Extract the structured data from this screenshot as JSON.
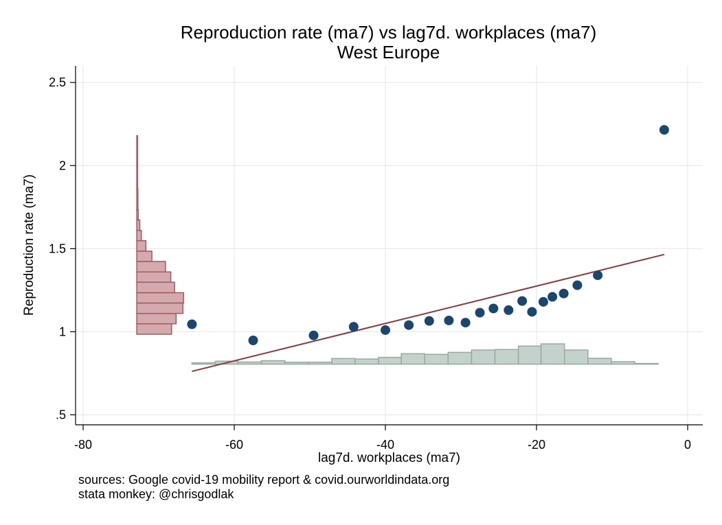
{
  "chart_data": {
    "type": "scatter",
    "title": "Reproduction rate (ma7) vs lag7d. workplaces (ma7)",
    "subtitle": "West Europe",
    "xlabel": "lag7d. workplaces (ma7)",
    "ylabel": "Reproduction rate (ma7)",
    "xlim": [
      -81,
      2
    ],
    "ylim": [
      0.44,
      2.6
    ],
    "xticks": [
      -80,
      -60,
      -40,
      -20,
      0
    ],
    "xtick_labels": [
      "-80",
      "-60",
      "-40",
      "-20",
      "0"
    ],
    "yticks": [
      0.5,
      1,
      1.5,
      2,
      2.5
    ],
    "ytick_labels": [
      ".5",
      "1",
      "1.5",
      "2",
      "2.5"
    ],
    "grid": true,
    "colors": {
      "points": "#1a476f",
      "fit_line": "#90353b",
      "y_hist_fill": "#d4aaae",
      "y_hist_edge": "#a05a62",
      "x_hist_fill": "#c5d1cb",
      "x_hist_edge": "#94aca0",
      "grid": "#eaeaea"
    },
    "points": [
      {
        "x": -65.6,
        "y": 1.045
      },
      {
        "x": -57.5,
        "y": 0.948
      },
      {
        "x": -49.5,
        "y": 0.978
      },
      {
        "x": -44.2,
        "y": 1.03
      },
      {
        "x": -40.0,
        "y": 1.01
      },
      {
        "x": -36.9,
        "y": 1.04
      },
      {
        "x": -34.2,
        "y": 1.065
      },
      {
        "x": -31.6,
        "y": 1.068
      },
      {
        "x": -29.4,
        "y": 1.055
      },
      {
        "x": -27.5,
        "y": 1.115
      },
      {
        "x": -25.7,
        "y": 1.14
      },
      {
        "x": -23.7,
        "y": 1.13
      },
      {
        "x": -21.9,
        "y": 1.185
      },
      {
        "x": -20.6,
        "y": 1.12
      },
      {
        "x": -19.1,
        "y": 1.18
      },
      {
        "x": -17.9,
        "y": 1.21
      },
      {
        "x": -16.4,
        "y": 1.23
      },
      {
        "x": -14.6,
        "y": 1.28
      },
      {
        "x": -11.9,
        "y": 1.34
      },
      {
        "x": -3.1,
        "y": 2.215
      }
    ],
    "fit_line": {
      "x": [
        -65.6,
        -3.1
      ],
      "y": [
        0.762,
        1.465
      ]
    },
    "x_histogram": {
      "baseline_y": 0.805,
      "bins": [
        {
          "x0": -65.6,
          "x1": -62.5,
          "top": 0.813
        },
        {
          "x0": -62.5,
          "x1": -59.5,
          "top": 0.823
        },
        {
          "x0": -59.5,
          "x1": -56.4,
          "top": 0.818
        },
        {
          "x0": -56.4,
          "x1": -53.3,
          "top": 0.826
        },
        {
          "x0": -53.3,
          "x1": -50.2,
          "top": 0.817
        },
        {
          "x0": -50.2,
          "x1": -47.1,
          "top": 0.817
        },
        {
          "x0": -47.1,
          "x1": -44.0,
          "top": 0.839
        },
        {
          "x0": -44.0,
          "x1": -40.9,
          "top": 0.836
        },
        {
          "x0": -40.9,
          "x1": -37.9,
          "top": 0.846
        },
        {
          "x0": -37.9,
          "x1": -34.8,
          "top": 0.868
        },
        {
          "x0": -34.8,
          "x1": -31.7,
          "top": 0.864
        },
        {
          "x0": -31.7,
          "x1": -28.6,
          "top": 0.876
        },
        {
          "x0": -28.6,
          "x1": -25.5,
          "top": 0.89
        },
        {
          "x0": -25.5,
          "x1": -22.4,
          "top": 0.893
        },
        {
          "x0": -22.4,
          "x1": -19.4,
          "top": 0.914
        },
        {
          "x0": -19.4,
          "x1": -16.3,
          "top": 0.927
        },
        {
          "x0": -16.3,
          "x1": -13.2,
          "top": 0.89
        },
        {
          "x0": -13.2,
          "x1": -10.1,
          "top": 0.84
        },
        {
          "x0": -10.1,
          "x1": -7.0,
          "top": 0.82
        },
        {
          "x0": -7.0,
          "x1": -3.9,
          "top": 0.809
        }
      ]
    },
    "y_histogram": {
      "baseline_x": -72.9,
      "bins": [
        {
          "y0": 0.985,
          "y1": 1.048,
          "right": -68.3
        },
        {
          "y0": 1.048,
          "y1": 1.11,
          "right": -67.7
        },
        {
          "y0": 1.11,
          "y1": 1.173,
          "right": -66.8
        },
        {
          "y0": 1.173,
          "y1": 1.235,
          "right": -66.7
        },
        {
          "y0": 1.235,
          "y1": 1.298,
          "right": -67.9
        },
        {
          "y0": 1.298,
          "y1": 1.36,
          "right": -68.4
        },
        {
          "y0": 1.36,
          "y1": 1.423,
          "right": -69.1
        },
        {
          "y0": 1.423,
          "y1": 1.485,
          "right": -70.9
        },
        {
          "y0": 1.485,
          "y1": 1.548,
          "right": -71.7
        },
        {
          "y0": 1.548,
          "y1": 1.61,
          "right": -72.3
        },
        {
          "y0": 1.61,
          "y1": 1.673,
          "right": -72.5
        },
        {
          "y0": 1.673,
          "y1": 1.735,
          "right": -72.7
        },
        {
          "y0": 1.735,
          "y1": 1.86,
          "right": -72.75
        },
        {
          "y0": 1.86,
          "y1": 2.18,
          "right": -72.8
        }
      ]
    }
  },
  "footer": {
    "sources": "sources: Google covid-19 mobility report & covid.ourworldindata.org",
    "credit": "stata monkey: @chrisgodlak"
  }
}
